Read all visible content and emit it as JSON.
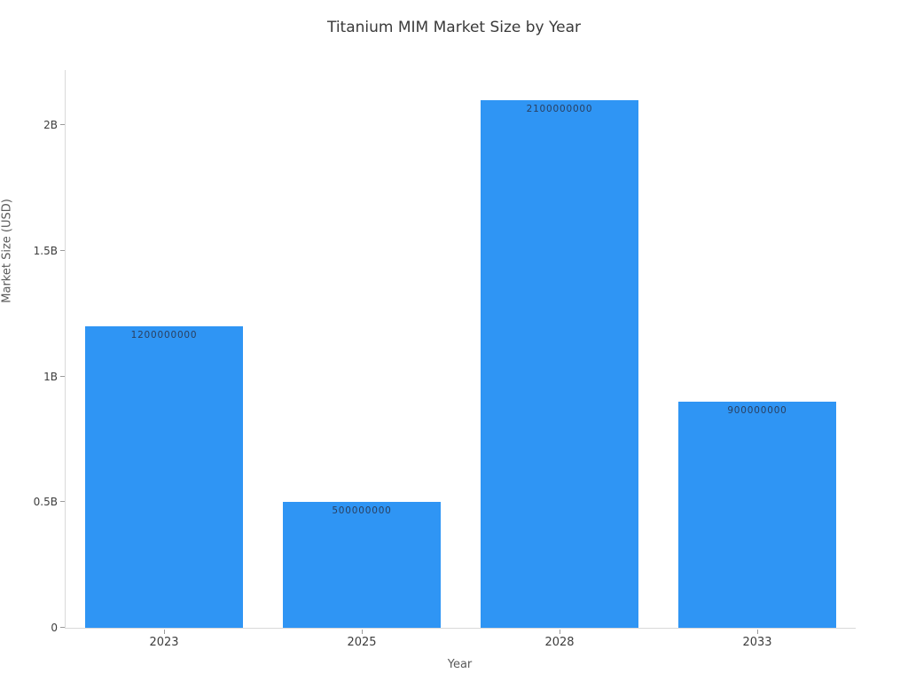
{
  "chart_data": {
    "type": "bar",
    "title": "Titanium MIM Market Size by Year",
    "xlabel": "Year",
    "ylabel": "Market Size (USD)",
    "categories": [
      "2023",
      "2025",
      "2028",
      "2033"
    ],
    "values": [
      1200000000,
      500000000,
      2100000000,
      900000000
    ],
    "bar_labels": [
      "1200000000",
      "500000000",
      "2100000000",
      "900000000"
    ],
    "bar_label_position": "inside-top",
    "ylim": [
      0,
      2220000000
    ],
    "yticks": [
      {
        "value": 0,
        "label": "0"
      },
      {
        "value": 500000000,
        "label": "0.5B"
      },
      {
        "value": 1000000000,
        "label": "1B"
      },
      {
        "value": 1500000000,
        "label": "1.5B"
      },
      {
        "value": 2000000000,
        "label": "2B"
      }
    ],
    "grid": "off",
    "legend": "none",
    "colors": {
      "background": "#ffffff",
      "bar": "#2f95f4",
      "bar_label_text": "#2a3f5f",
      "axis_line": "#d9d9d9",
      "tick_mark": "#9b9b9b",
      "tick_text": "#3d3d3d",
      "title_text": "#3a3a3a",
      "axis_title_text": "#5a5a5a"
    }
  }
}
